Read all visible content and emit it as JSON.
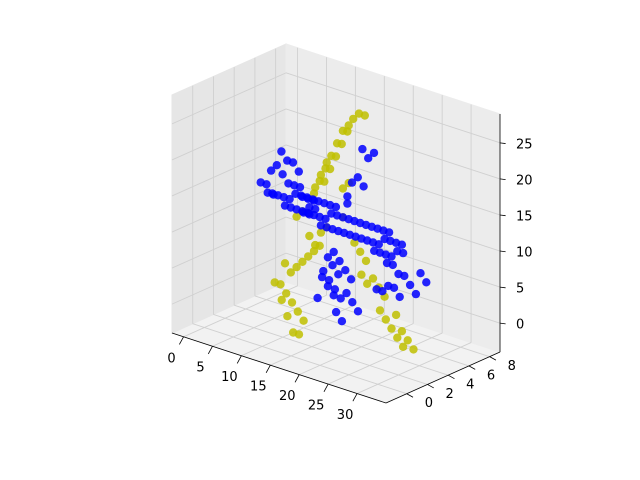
{
  "chart_data": {
    "type": "scatter",
    "projection": "3d",
    "grid": true,
    "legend": "none",
    "title": "",
    "xlabel": "",
    "ylabel": "",
    "zlabel": "",
    "xlim": [
      -2,
      35
    ],
    "ylim": [
      -2,
      9
    ],
    "zlim": [
      -4,
      29
    ],
    "x_ticks": [
      "0",
      "5",
      "10",
      "15",
      "20",
      "25",
      "30"
    ],
    "x_tick_values": [
      0,
      5,
      10,
      15,
      20,
      25,
      30
    ],
    "y_ticks": [
      "0",
      "2",
      "4",
      "6",
      "8"
    ],
    "y_tick_values": [
      0,
      2,
      4,
      6,
      8
    ],
    "z_ticks": [
      "0",
      "5",
      "10",
      "15",
      "20",
      "25"
    ],
    "z_tick_values": [
      0,
      5,
      10,
      15,
      20,
      25
    ],
    "colors": {
      "yellow": "#bfbf00",
      "blue": "#0000ff"
    },
    "series": [
      {
        "color": "#bfbf00",
        "points": [
          [
            10,
            5,
            14
          ],
          [
            11,
            5,
            16
          ],
          [
            12,
            5,
            18
          ],
          [
            13,
            5,
            20
          ],
          [
            14,
            5,
            22
          ],
          [
            15,
            5,
            24
          ],
          [
            16,
            5,
            25
          ],
          [
            16,
            6,
            26
          ],
          [
            17,
            6,
            26
          ],
          [
            14,
            6,
            23
          ],
          [
            15,
            6,
            25
          ],
          [
            13,
            6,
            21
          ],
          [
            12,
            6,
            19
          ],
          [
            11,
            6,
            17
          ],
          [
            10,
            6,
            15
          ],
          [
            12,
            4,
            16
          ],
          [
            13,
            4,
            18
          ],
          [
            14,
            4,
            20
          ],
          [
            6,
            5,
            2
          ],
          [
            7,
            5,
            3
          ],
          [
            8,
            5,
            4
          ],
          [
            9,
            5,
            5
          ],
          [
            10,
            5,
            6
          ],
          [
            11,
            5,
            7
          ],
          [
            6,
            4,
            1
          ],
          [
            7,
            4,
            0
          ],
          [
            8,
            4,
            -1
          ],
          [
            9,
            4,
            -2
          ],
          [
            10,
            4,
            -3
          ],
          [
            10,
            3,
            -4
          ],
          [
            11,
            3,
            -4
          ],
          [
            9,
            3,
            -2
          ],
          [
            8,
            3,
            0
          ],
          [
            5,
            4,
            1
          ],
          [
            5,
            5,
            3
          ],
          [
            25,
            3,
            3
          ],
          [
            26,
            3,
            2
          ],
          [
            27,
            3,
            1
          ],
          [
            28,
            3,
            0
          ],
          [
            29,
            3,
            -1
          ],
          [
            29,
            4,
            -2
          ],
          [
            28,
            4,
            -1
          ],
          [
            27,
            4,
            0
          ],
          [
            26,
            4,
            2
          ],
          [
            24,
            4,
            4
          ],
          [
            23,
            4,
            5
          ],
          [
            13,
            4,
            10
          ],
          [
            14,
            4,
            11
          ],
          [
            15,
            5,
            12
          ],
          [
            18,
            5,
            8
          ],
          [
            19,
            5,
            7
          ],
          [
            20,
            4,
            6
          ],
          [
            21,
            4,
            5
          ],
          [
            22,
            4,
            6
          ],
          [
            17,
            5,
            9
          ],
          [
            15,
            5,
            16
          ],
          [
            16,
            5,
            17
          ],
          [
            9,
            5,
            11
          ],
          [
            8,
            5,
            11
          ],
          [
            7,
            5,
            10
          ],
          [
            11,
            4,
            9
          ],
          [
            12,
            4,
            8
          ]
        ]
      },
      {
        "color": "#0000ff",
        "points": [
          [
            -1,
            8,
            15
          ],
          [
            0,
            8,
            14
          ],
          [
            1,
            8,
            14
          ],
          [
            2,
            8,
            13
          ],
          [
            0,
            7,
            14
          ],
          [
            1,
            7,
            13
          ],
          [
            -1,
            7,
            13
          ],
          [
            0,
            6,
            12
          ],
          [
            1,
            6,
            11
          ],
          [
            -1,
            6,
            12
          ],
          [
            2,
            7,
            12
          ],
          [
            3,
            7,
            12
          ],
          [
            4,
            7,
            12
          ],
          [
            2,
            6,
            11
          ],
          [
            3,
            6,
            11
          ],
          [
            4,
            6,
            11
          ],
          [
            2,
            5,
            12
          ],
          [
            3,
            5,
            12
          ],
          [
            5,
            6,
            12
          ],
          [
            6,
            6,
            12
          ],
          [
            7,
            6,
            12
          ],
          [
            8,
            6,
            12
          ],
          [
            9,
            6,
            12
          ],
          [
            10,
            6,
            12
          ],
          [
            11,
            6,
            12
          ],
          [
            12,
            6,
            12
          ],
          [
            5,
            5,
            11
          ],
          [
            6,
            5,
            11
          ],
          [
            7,
            5,
            11
          ],
          [
            8,
            5,
            11
          ],
          [
            9,
            5,
            11
          ],
          [
            10,
            5,
            11
          ],
          [
            11,
            5,
            11
          ],
          [
            12,
            5,
            11
          ],
          [
            13,
            5,
            12
          ],
          [
            14,
            5,
            12
          ],
          [
            15,
            5,
            12
          ],
          [
            16,
            5,
            12
          ],
          [
            17,
            5,
            12
          ],
          [
            18,
            5,
            12
          ],
          [
            19,
            5,
            12
          ],
          [
            20,
            5,
            12
          ],
          [
            13,
            4,
            11
          ],
          [
            14,
            4,
            11
          ],
          [
            15,
            4,
            11
          ],
          [
            16,
            4,
            11
          ],
          [
            17,
            4,
            11
          ],
          [
            18,
            4,
            11
          ],
          [
            19,
            4,
            11
          ],
          [
            20,
            4,
            11
          ],
          [
            21,
            4,
            11
          ],
          [
            22,
            4,
            11
          ],
          [
            23,
            4,
            11
          ],
          [
            24,
            3,
            11
          ],
          [
            25,
            3,
            11
          ],
          [
            26,
            3,
            11
          ],
          [
            27,
            3,
            11
          ],
          [
            28,
            2,
            11
          ],
          [
            29,
            2,
            11
          ],
          [
            21,
            5,
            12
          ],
          [
            22,
            5,
            12
          ],
          [
            23,
            5,
            12
          ],
          [
            24,
            4,
            12
          ],
          [
            25,
            4,
            12
          ],
          [
            26,
            4,
            12
          ],
          [
            27,
            4,
            12
          ],
          [
            28,
            3,
            12
          ],
          [
            29,
            3,
            12
          ],
          [
            30,
            2,
            10
          ],
          [
            31,
            2,
            10
          ],
          [
            32,
            2,
            9
          ],
          [
            32,
            1,
            8
          ],
          [
            31,
            1,
            9
          ],
          [
            30,
            1,
            9
          ],
          [
            29,
            1,
            8
          ],
          [
            28,
            1,
            8
          ],
          [
            32,
            3,
            10
          ],
          [
            33,
            3,
            9
          ],
          [
            33,
            2,
            8
          ],
          [
            17,
            3,
            9
          ],
          [
            18,
            3,
            8
          ],
          [
            19,
            3,
            7
          ],
          [
            20,
            3,
            6
          ],
          [
            21,
            2,
            5
          ],
          [
            22,
            2,
            4
          ],
          [
            23,
            2,
            3
          ],
          [
            16,
            3,
            8
          ],
          [
            17,
            2,
            7
          ],
          [
            18,
            2,
            6
          ],
          [
            19,
            2,
            5
          ],
          [
            20,
            2,
            4
          ],
          [
            21,
            1,
            3
          ],
          [
            22,
            1,
            2
          ],
          [
            14,
            6,
            14
          ],
          [
            14,
            7,
            16
          ],
          [
            14,
            8,
            18
          ],
          [
            15,
            8,
            19
          ],
          [
            13,
            8,
            19
          ],
          [
            15,
            7,
            15
          ],
          [
            13,
            7,
            15
          ],
          [
            14,
            6,
            13
          ],
          [
            15,
            4,
            6
          ],
          [
            16,
            4,
            5
          ],
          [
            16,
            3,
            4
          ],
          [
            17,
            3,
            3
          ],
          [
            15,
            3,
            5
          ],
          [
            16,
            2,
            3
          ],
          [
            8,
            5,
            13
          ],
          [
            9,
            5,
            13
          ],
          [
            10,
            5,
            13
          ],
          [
            11,
            4,
            13
          ],
          [
            12,
            4,
            13
          ],
          [
            10,
            4,
            12
          ],
          [
            11,
            4,
            12
          ]
        ]
      }
    ]
  }
}
